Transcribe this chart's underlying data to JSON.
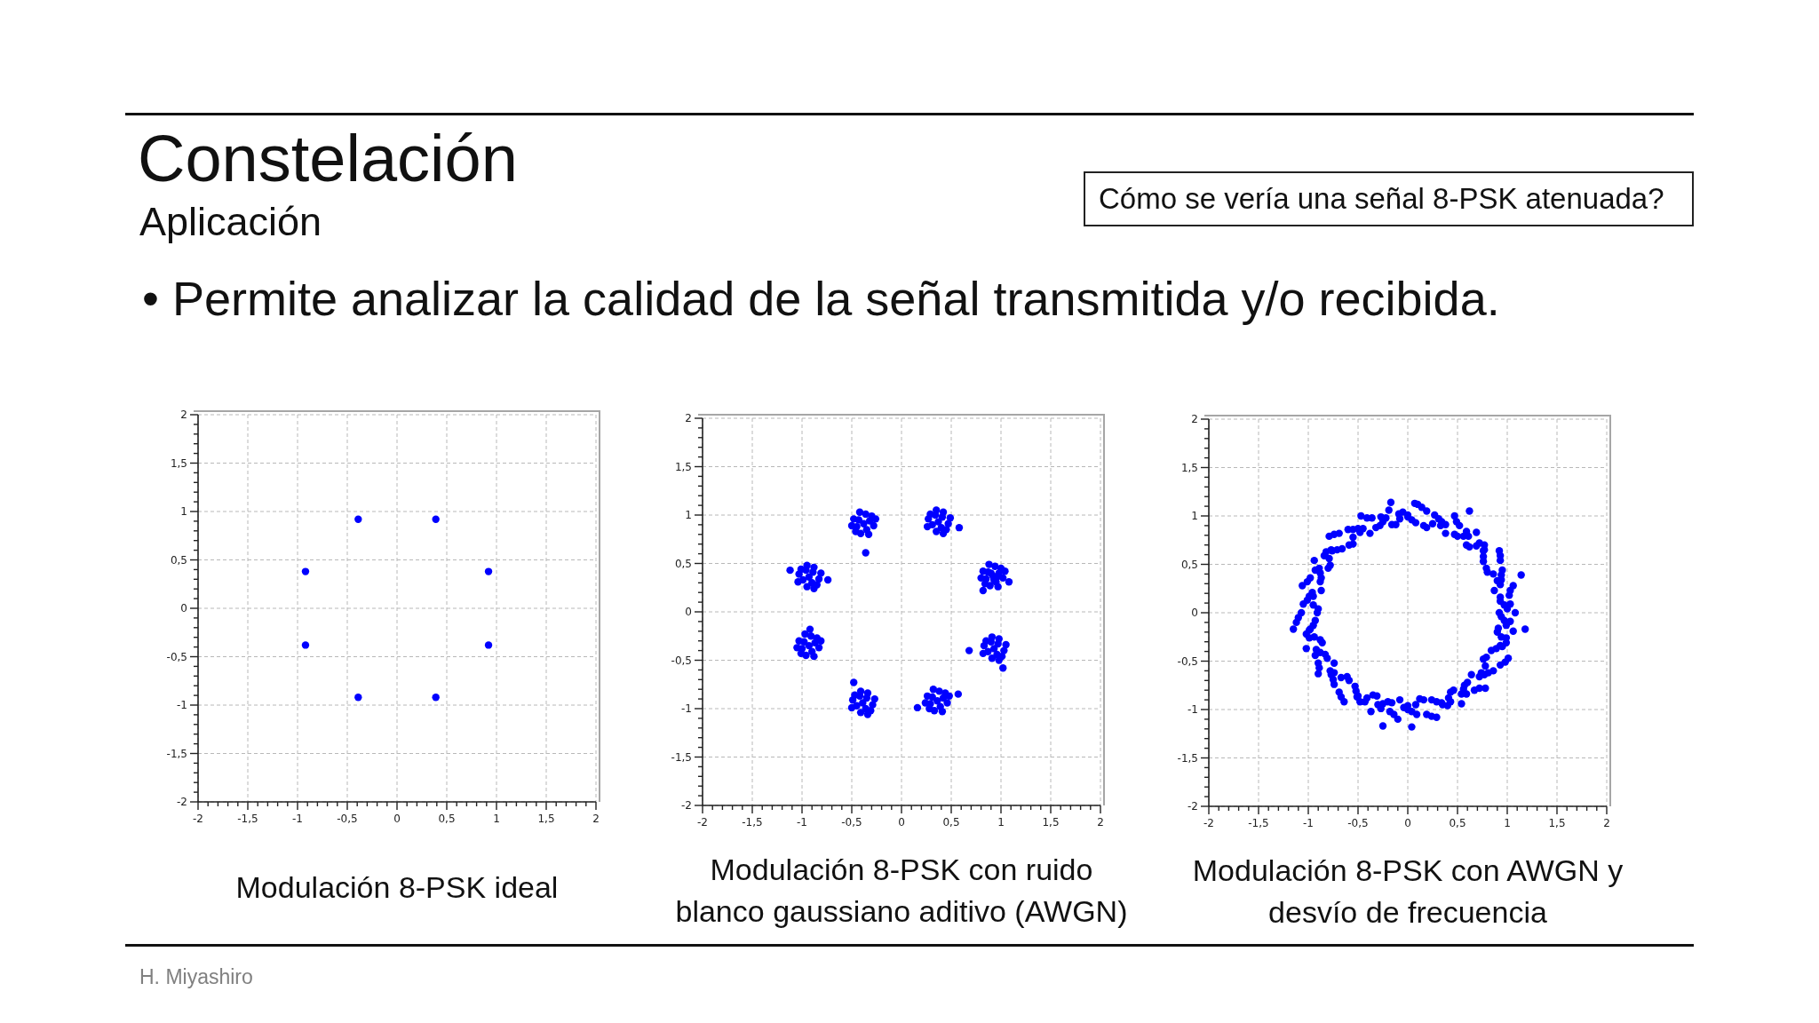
{
  "chart_data": [
    {
      "type": "other",
      "title": "Constelación",
      "subtitle": "Aplicación",
      "annotations": [
        "• Permite analizar la calidad de la señal transmitida y/o recibida.",
        "Cómo se vería una señal 8-PSK atenuada?",
        "H. Miyashiro"
      ]
    },
    {
      "type": "scatter",
      "title": "Modulación 8-PSK ideal",
      "color": "#0000ff",
      "marker": "circle",
      "grid": true,
      "xlim": [
        -2,
        2
      ],
      "ylim": [
        -2,
        2
      ],
      "xticks": [
        -2,
        {
          "value": -1.9,
          "label": null
        },
        {
          "value": -1.8,
          "label": null
        },
        {
          "value": -1.7,
          "label": null
        },
        {
          "value": -1.6,
          "label": null
        },
        {
          "value": -1.5,
          "label": "-1,5"
        },
        {
          "value": -1.4,
          "label": null
        },
        {
          "value": -1.3,
          "label": null
        },
        {
          "value": -1.2,
          "label": null
        },
        {
          "value": -1.1,
          "label": null
        },
        -1,
        {
          "value": -0.9,
          "label": null
        },
        {
          "value": -0.8,
          "label": null
        },
        {
          "value": -0.7,
          "label": null
        },
        {
          "value": -0.6,
          "label": null
        },
        {
          "value": -0.5,
          "label": "-0,5"
        },
        {
          "value": -0.4,
          "label": null
        },
        {
          "value": -0.3,
          "label": null
        },
        {
          "value": -0.2,
          "label": null
        },
        {
          "value": -0.1,
          "label": null
        },
        0,
        {
          "value": 0.1,
          "label": null
        },
        {
          "value": 0.2,
          "label": null
        },
        {
          "value": 0.3,
          "label": null
        },
        {
          "value": 0.4,
          "label": null
        },
        {
          "value": 0.5,
          "label": "0,5"
        },
        {
          "value": 0.6,
          "label": null
        },
        {
          "value": 0.7,
          "label": null
        },
        {
          "value": 0.8,
          "label": null
        },
        {
          "value": 0.9,
          "label": null
        },
        1,
        {
          "value": 1.1,
          "label": null
        },
        {
          "value": 1.2,
          "label": null
        },
        {
          "value": 1.3,
          "label": null
        },
        {
          "value": 1.4,
          "label": null
        },
        {
          "value": 1.5,
          "label": "1,5"
        },
        {
          "value": 1.6,
          "label": null
        },
        {
          "value": 1.7,
          "label": null
        },
        {
          "value": 1.8,
          "label": null
        },
        {
          "value": 1.9,
          "label": null
        },
        2
      ],
      "yticks": [
        -2,
        {
          "value": -1.9,
          "label": null
        },
        {
          "value": -1.8,
          "label": null
        },
        {
          "value": -1.7,
          "label": null
        },
        {
          "value": -1.6,
          "label": null
        },
        {
          "value": -1.5,
          "label": "-1,5"
        },
        {
          "value": -1.4,
          "label": null
        },
        {
          "value": -1.3,
          "label": null
        },
        {
          "value": -1.2,
          "label": null
        },
        {
          "value": -1.1,
          "label": null
        },
        -1,
        {
          "value": -0.9,
          "label": null
        },
        {
          "value": -0.8,
          "label": null
        },
        {
          "value": -0.7,
          "label": null
        },
        {
          "value": -0.6,
          "label": null
        },
        {
          "value": -0.5,
          "label": "-0,5"
        },
        {
          "value": -0.4,
          "label": null
        },
        {
          "value": -0.3,
          "label": null
        },
        {
          "value": -0.2,
          "label": null
        },
        {
          "value": -0.1,
          "label": null
        },
        0,
        {
          "value": 0.1,
          "label": null
        },
        {
          "value": 0.2,
          "label": null
        },
        {
          "value": 0.3,
          "label": null
        },
        {
          "value": 0.4,
          "label": null
        },
        {
          "value": 0.5,
          "label": "0,5"
        },
        {
          "value": 0.6,
          "label": null
        },
        {
          "value": 0.7,
          "label": null
        },
        {
          "value": 0.8,
          "label": null
        },
        {
          "value": 0.9,
          "label": null
        },
        1,
        {
          "value": 1.1,
          "label": null
        },
        {
          "value": 1.2,
          "label": null
        },
        {
          "value": 1.3,
          "label": null
        },
        {
          "value": 1.4,
          "label": null
        },
        {
          "value": 1.5,
          "label": "1,5"
        },
        {
          "value": 1.6,
          "label": null
        },
        {
          "value": 1.7,
          "label": null
        },
        {
          "value": 1.8,
          "label": null
        },
        {
          "value": 1.9,
          "label": null
        },
        2
      ],
      "x": [
        0.39,
        0.92,
        0.92,
        0.39,
        -0.39,
        -0.92,
        -0.92,
        -0.39
      ],
      "values": [
        0.92,
        0.38,
        -0.38,
        -0.92,
        -0.92,
        -0.38,
        0.38,
        0.92
      ]
    },
    {
      "type": "scatter",
      "title": "Modulación 8-PSK con ruido blanco gaussiano aditivo (AWGN)",
      "color": "#0000ff",
      "marker": "circle",
      "grid": true,
      "xlim": [
        -2,
        2
      ],
      "ylim": [
        -2,
        2
      ],
      "xticks": [
        -2,
        {
          "value": -1.9,
          "label": null
        },
        {
          "value": -1.8,
          "label": null
        },
        {
          "value": -1.7,
          "label": null
        },
        {
          "value": -1.6,
          "label": null
        },
        {
          "value": -1.5,
          "label": "-1,5"
        },
        {
          "value": -1.4,
          "label": null
        },
        {
          "value": -1.3,
          "label": null
        },
        {
          "value": -1.2,
          "label": null
        },
        {
          "value": -1.1,
          "label": null
        },
        -1,
        {
          "value": -0.9,
          "label": null
        },
        {
          "value": -0.8,
          "label": null
        },
        {
          "value": -0.7,
          "label": null
        },
        {
          "value": -0.6,
          "label": null
        },
        {
          "value": -0.5,
          "label": "-0,5"
        },
        {
          "value": -0.4,
          "label": null
        },
        {
          "value": -0.3,
          "label": null
        },
        {
          "value": -0.2,
          "label": null
        },
        {
          "value": -0.1,
          "label": null
        },
        0,
        {
          "value": 0.1,
          "label": null
        },
        {
          "value": 0.2,
          "label": null
        },
        {
          "value": 0.3,
          "label": null
        },
        {
          "value": 0.4,
          "label": null
        },
        {
          "value": 0.5,
          "label": "0,5"
        },
        {
          "value": 0.6,
          "label": null
        },
        {
          "value": 0.7,
          "label": null
        },
        {
          "value": 0.8,
          "label": null
        },
        {
          "value": 0.9,
          "label": null
        },
        1,
        {
          "value": 1.1,
          "label": null
        },
        {
          "value": 1.2,
          "label": null
        },
        {
          "value": 1.3,
          "label": null
        },
        {
          "value": 1.4,
          "label": null
        },
        {
          "value": 1.5,
          "label": "1,5"
        },
        {
          "value": 1.6,
          "label": null
        },
        {
          "value": 1.7,
          "label": null
        },
        {
          "value": 1.8,
          "label": null
        },
        {
          "value": 1.9,
          "label": null
        },
        2
      ],
      "yticks": [
        -2,
        {
          "value": -1.9,
          "label": null
        },
        {
          "value": -1.8,
          "label": null
        },
        {
          "value": -1.7,
          "label": null
        },
        {
          "value": -1.6,
          "label": null
        },
        {
          "value": -1.5,
          "label": "-1,5"
        },
        {
          "value": -1.4,
          "label": null
        },
        {
          "value": -1.3,
          "label": null
        },
        {
          "value": -1.2,
          "label": null
        },
        {
          "value": -1.1,
          "label": null
        },
        -1,
        {
          "value": -0.9,
          "label": null
        },
        {
          "value": -0.8,
          "label": null
        },
        {
          "value": -0.7,
          "label": null
        },
        {
          "value": -0.6,
          "label": null
        },
        {
          "value": -0.5,
          "label": "-0,5"
        },
        {
          "value": -0.4,
          "label": null
        },
        {
          "value": -0.3,
          "label": null
        },
        {
          "value": -0.2,
          "label": null
        },
        {
          "value": -0.1,
          "label": null
        },
        0,
        {
          "value": 0.1,
          "label": null
        },
        {
          "value": 0.2,
          "label": null
        },
        {
          "value": 0.3,
          "label": null
        },
        {
          "value": 0.4,
          "label": null
        },
        {
          "value": 0.5,
          "label": "0,5"
        },
        {
          "value": 0.6,
          "label": null
        },
        {
          "value": 0.7,
          "label": null
        },
        {
          "value": 0.8,
          "label": null
        },
        {
          "value": 0.9,
          "label": null
        },
        1,
        {
          "value": 1.1,
          "label": null
        },
        {
          "value": 1.2,
          "label": null
        },
        {
          "value": 1.3,
          "label": null
        },
        {
          "value": 1.4,
          "label": null
        },
        {
          "value": 1.5,
          "label": "1,5"
        },
        {
          "value": 1.6,
          "label": null
        },
        {
          "value": 1.7,
          "label": null
        },
        {
          "value": 1.8,
          "label": null
        },
        {
          "value": 1.9,
          "label": null
        },
        2
      ],
      "x": [
        -0.38,
        -0.32,
        -0.43,
        -0.35,
        -0.45,
        -0.28,
        -0.48,
        -0.36,
        -0.41,
        -0.3,
        -0.46,
        -0.26,
        -0.5,
        -0.33,
        -0.42,
        0.37,
        0.4,
        0.41,
        0.31,
        0.34,
        0.35,
        0.42,
        0.47,
        0.27,
        0.45,
        0.29,
        0.42,
        0.35,
        0.26,
        0.49,
        0.92,
        0.98,
        0.87,
        0.95,
        0.85,
        1.02,
        0.82,
        0.94,
        0.89,
        1,
        0.84,
        1.04,
        0.8,
        0.97,
        0.88,
        0.93,
        0.96,
        0.9,
        1.08,
        0.82,
        0.93,
        0.96,
        0.97,
        0.87,
        0.9,
        0.91,
        0.98,
        1.03,
        0.83,
        1.01,
        0.85,
        0.98,
        0.91,
        0.82,
        1.05,
        0.36,
        0.42,
        0.31,
        0.39,
        0.29,
        0.46,
        0.26,
        0.38,
        0.33,
        0.44,
        0.28,
        0.48,
        0.24,
        0.41,
        0.32,
        -0.39,
        -0.36,
        -0.35,
        -0.45,
        -0.42,
        -0.41,
        -0.34,
        -0.29,
        -0.49,
        -0.31,
        -0.47,
        -0.34,
        -0.41,
        -0.5,
        -0.27,
        -0.93,
        -0.87,
        -0.98,
        -0.9,
        -1,
        -0.83,
        -1.03,
        -0.91,
        -0.96,
        -0.85,
        -1.01,
        -0.81,
        -1.05,
        -0.88,
        -0.97,
        -0.93,
        -0.9,
        -0.89,
        -0.99,
        -0.96,
        -0.95,
        -0.88,
        -0.83,
        -1.03,
        -0.85,
        -1.01,
        -0.88,
        -0.95,
        -1.04,
        -0.81,
        -0.36,
        -1.12,
        0.58,
        0.68,
        1.02,
        -0.48,
        0.16,
        -0.92,
        0.57,
        -0.74
      ],
      "values": [
        0.91,
        0.94,
        0.95,
        0.85,
        0.88,
        0.89,
        0.96,
        1.01,
        0.81,
        0.99,
        0.83,
        0.96,
        0.89,
        0.8,
        1.03,
        0.93,
        0.87,
        0.98,
        0.9,
        1,
        0.83,
        1.03,
        0.91,
        0.96,
        0.85,
        1.01,
        0.81,
        1.05,
        0.88,
        0.97,
        0.37,
        0.4,
        0.41,
        0.31,
        0.34,
        0.35,
        0.42,
        0.47,
        0.27,
        0.45,
        0.29,
        0.42,
        0.35,
        0.26,
        0.49,
        0.33,
        0.36,
        0.4,
        0.31,
        0.22,
        -0.38,
        -0.44,
        -0.33,
        -0.41,
        -0.31,
        -0.48,
        -0.28,
        -0.4,
        -0.35,
        -0.46,
        -0.3,
        -0.5,
        -0.26,
        -0.43,
        -0.34,
        -0.92,
        -0.89,
        -0.88,
        -0.98,
        -0.95,
        -0.94,
        -0.87,
        -0.82,
        -1.02,
        -0.84,
        -1,
        -0.87,
        -0.94,
        -1.03,
        -0.8,
        -0.94,
        -1,
        -0.89,
        -0.97,
        -0.87,
        -1.04,
        -0.84,
        -0.96,
        -0.91,
        -1.02,
        -0.86,
        -1.06,
        -0.82,
        -0.99,
        -0.9,
        -0.35,
        -0.32,
        -0.31,
        -0.41,
        -0.38,
        -0.37,
        -0.3,
        -0.25,
        -0.45,
        -0.27,
        -0.43,
        -0.3,
        -0.37,
        -0.46,
        -0.23,
        0.36,
        0.3,
        0.41,
        0.33,
        0.43,
        0.26,
        0.46,
        0.34,
        0.39,
        0.28,
        0.44,
        0.24,
        0.48,
        0.31,
        0.4,
        0.61,
        0.43,
        0.87,
        -0.4,
        -0.58,
        -0.73,
        -0.99,
        -0.18,
        -0.85,
        0.33
      ]
    },
    {
      "type": "scatter",
      "title": "Modulación 8-PSK con AWGN y desvío de frecuencia",
      "color": "#0000ff",
      "marker": "circle",
      "grid": true,
      "xlim": [
        -2,
        2
      ],
      "ylim": [
        -2,
        2
      ],
      "xticks": [
        -2,
        {
          "value": -1.9,
          "label": null
        },
        {
          "value": -1.8,
          "label": null
        },
        {
          "value": -1.7,
          "label": null
        },
        {
          "value": -1.6,
          "label": null
        },
        {
          "value": -1.5,
          "label": "-1,5"
        },
        {
          "value": -1.4,
          "label": null
        },
        {
          "value": -1.3,
          "label": null
        },
        {
          "value": -1.2,
          "label": null
        },
        {
          "value": -1.1,
          "label": null
        },
        -1,
        {
          "value": -0.9,
          "label": null
        },
        {
          "value": -0.8,
          "label": null
        },
        {
          "value": -0.7,
          "label": null
        },
        {
          "value": -0.6,
          "label": null
        },
        {
          "value": -0.5,
          "label": "-0,5"
        },
        {
          "value": -0.4,
          "label": null
        },
        {
          "value": -0.3,
          "label": null
        },
        {
          "value": -0.2,
          "label": null
        },
        {
          "value": -0.1,
          "label": null
        },
        0,
        {
          "value": 0.1,
          "label": null
        },
        {
          "value": 0.2,
          "label": null
        },
        {
          "value": 0.3,
          "label": null
        },
        {
          "value": 0.4,
          "label": null
        },
        {
          "value": 0.5,
          "label": "0,5"
        },
        {
          "value": 0.6,
          "label": null
        },
        {
          "value": 0.7,
          "label": null
        },
        {
          "value": 0.8,
          "label": null
        },
        {
          "value": 0.9,
          "label": null
        },
        1,
        {
          "value": 1.1,
          "label": null
        },
        {
          "value": 1.2,
          "label": null
        },
        {
          "value": 1.3,
          "label": null
        },
        {
          "value": 1.4,
          "label": null
        },
        {
          "value": 1.5,
          "label": "1,5"
        },
        {
          "value": 1.6,
          "label": null
        },
        {
          "value": 1.7,
          "label": null
        },
        {
          "value": 1.8,
          "label": null
        },
        {
          "value": 1.9,
          "label": null
        },
        2
      ],
      "yticks": [
        -2,
        {
          "value": -1.9,
          "label": null
        },
        {
          "value": -1.8,
          "label": null
        },
        {
          "value": -1.7,
          "label": null
        },
        {
          "value": -1.6,
          "label": null
        },
        {
          "value": -1.5,
          "label": "-1,5"
        },
        {
          "value": -1.4,
          "label": null
        },
        {
          "value": -1.3,
          "label": null
        },
        {
          "value": -1.2,
          "label": null
        },
        {
          "value": -1.1,
          "label": null
        },
        -1,
        {
          "value": -0.9,
          "label": null
        },
        {
          "value": -0.8,
          "label": null
        },
        {
          "value": -0.7,
          "label": null
        },
        {
          "value": -0.6,
          "label": null
        },
        {
          "value": -0.5,
          "label": "-0,5"
        },
        {
          "value": -0.4,
          "label": null
        },
        {
          "value": -0.3,
          "label": null
        },
        {
          "value": -0.2,
          "label": null
        },
        {
          "value": -0.1,
          "label": null
        },
        0,
        {
          "value": 0.1,
          "label": null
        },
        {
          "value": 0.2,
          "label": null
        },
        {
          "value": 0.3,
          "label": null
        },
        {
          "value": 0.4,
          "label": null
        },
        {
          "value": 0.5,
          "label": "0,5"
        },
        {
          "value": 0.6,
          "label": null
        },
        {
          "value": 0.7,
          "label": null
        },
        {
          "value": 0.8,
          "label": null
        },
        {
          "value": 0.9,
          "label": null
        },
        1,
        {
          "value": 1.1,
          "label": null
        },
        {
          "value": 1.2,
          "label": null
        },
        {
          "value": 1.3,
          "label": null
        },
        {
          "value": 1.4,
          "label": null
        },
        {
          "value": 1.5,
          "label": "1,5"
        },
        {
          "value": 1.6,
          "label": null
        },
        {
          "value": 1.7,
          "label": null
        },
        {
          "value": 1.8,
          "label": null
        },
        {
          "value": 1.9,
          "label": null
        },
        2
      ],
      "x": [
        0.92,
        1.08,
        0.97,
        1.03,
        1.02,
        0.93,
        0.87,
        1.06,
        0.94,
        0.9,
        0.86,
        0.95,
        0.93,
        0.79,
        0.76,
        0.92,
        0.76,
        0.77,
        0.72,
        0.69,
        0.59,
        0.69,
        0.56,
        0.59,
        0.52,
        0.47,
        0.38,
        0.47,
        0.34,
        0.33,
        0.25,
        0.27,
        0.19,
        0.16,
        0.08,
        0.1,
        0,
        0,
        -0.09,
        -0.08,
        -0.16,
        -0.19,
        -0.25,
        -0.27,
        -0.36,
        -0.32,
        -0.38,
        -0.47,
        -0.5,
        -0.48,
        -0.55,
        -0.6,
        -0.69,
        -0.59,
        -0.66,
        -0.79,
        -0.76,
        -0.77,
        -0.84,
        -0.79,
        -0.8,
        -0.94,
        -0.88,
        -0.93,
        -0.98,
        -0.88,
        -0.87,
        -1.06,
        -0.99,
        -0.95,
        -0.95,
        -1.05,
        -1.07,
        -0.91,
        -0.93,
        -1.12,
        -0.98,
        -0.99,
        -0.99,
        -0.94,
        -0.86,
        -1.02,
        -0.88,
        -0.93,
        -0.9,
        -0.81,
        -0.74,
        -0.9,
        -0.77,
        -0.74,
        -0.67,
        -0.74,
        -0.69,
        -0.59,
        -0.53,
        -0.64,
        -0.5,
        -0.51,
        -0.43,
        -0.41,
        -0.31,
        -0.37,
        -0.25,
        -0.27,
        -0.18,
        -0.16,
        -0.08,
        -0.1,
        0,
        0,
        0.08,
        0.09,
        0.19,
        0.16,
        0.24,
        0.29,
        0.34,
        0.35,
        0.43,
        0.41,
        0.46,
        0.54,
        0.56,
        0.59,
        0.67,
        0.6,
        0.64,
        0.78,
        0.77,
        0.74,
        0.78,
        0.86,
        0.93,
        0.79,
        0.84,
        1.01,
        0.93,
        0.95,
        0.99,
        0.94,
        0.91,
        1.06,
        0.97,
        1.03,
        0.62,
        1.18,
        -0.25,
        0.04,
        -1.15,
        0.07,
        -0.17,
        1.14,
        1,
        0.93,
        1.03,
        0.93,
        0.94,
        0.8,
        0.93,
        0.76,
        0.77,
        0.62,
        0.61,
        0.5,
        0.49,
        0.38,
        0.31,
        0.19,
        0.14,
        0.04,
        -0.05,
        -0.12,
        -0.22,
        -0.28,
        -0.41,
        -0.45,
        -0.55,
        -0.55,
        -0.74,
        -0.71,
        -0.82,
        -0.78,
        -0.89,
        -0.87,
        -1.01,
        -0.96,
        -1.01,
        -0.9,
        -1.1,
        -0.95,
        -1.02,
        -0.88,
        -0.92,
        -0.83,
        -0.89,
        -0.78,
        -0.75,
        -0.61,
        -0.67,
        -0.52,
        -0.48,
        -0.35,
        -0.3,
        -0.2,
        -0.14,
        -0.04,
        0.04,
        0.12,
        0.24,
        0.29,
        0.4,
        0.43,
        0.54,
        0.57,
        0.72,
        0.72,
        0.81,
        0.76,
        0.98,
        0.89,
        0.99,
        0.9,
        0.99,
        0.94
      ],
      "values": [
        0,
        0,
        0.08,
        0.09,
        0.18,
        0.16,
        0.23,
        0.28,
        0.34,
        0.33,
        0.4,
        0.44,
        0.54,
        0.46,
        0.53,
        0.64,
        0.64,
        0.65,
        0.72,
        0.69,
        0.7,
        0.83,
        0.79,
        0.84,
        0.9,
        0.81,
        0.82,
        1,
        0.94,
        0.9,
        0.92,
        1.01,
        1.05,
        0.9,
        0.93,
        1.12,
        0.99,
        1.01,
        1.02,
        0.97,
        0.91,
        1.06,
        0.94,
        0.99,
        0.98,
        0.88,
        0.82,
        1,
        0.87,
        0.83,
        0.78,
        0.86,
        0.82,
        0.7,
        0.66,
        0.79,
        0.64,
        0.65,
        0.59,
        0.56,
        0.46,
        0.54,
        0.41,
        0.44,
        0.36,
        0.32,
        0.23,
        0.28,
        0.17,
        0.17,
        0.08,
        0.09,
        0,
        0,
        -0.08,
        -0.1,
        -0.17,
        -0.18,
        -0.26,
        -0.25,
        -0.31,
        -0.37,
        -0.41,
        -0.44,
        -0.52,
        -0.47,
        -0.52,
        -0.63,
        -0.64,
        -0.62,
        -0.67,
        -0.74,
        -0.82,
        -0.7,
        -0.76,
        -0.92,
        -0.86,
        -0.87,
        -0.92,
        -0.88,
        -0.86,
        -1.02,
        -0.94,
        -0.99,
        -1.02,
        -0.93,
        -0.9,
        -1.1,
        -1,
        -0.96,
        -0.95,
        -1.05,
        -1.05,
        -0.9,
        -0.9,
        -1.08,
        -0.93,
        -0.95,
        -0.92,
        -0.88,
        -0.8,
        -0.94,
        -0.79,
        -0.84,
        -0.8,
        -0.72,
        -0.64,
        -0.78,
        -0.64,
        -0.62,
        -0.55,
        -0.6,
        -0.54,
        -0.46,
        -0.39,
        -0.47,
        -0.34,
        -0.35,
        -0.26,
        -0.25,
        -0.16,
        -0.19,
        -0.08,
        -0.09,
        1.05,
        -0.17,
        -1.17,
        -1.18,
        -0.17,
        1.13,
        1.14,
        0.39,
        0.04,
        0.12,
        0.23,
        0.29,
        0.39,
        0.42,
        0.59,
        0.58,
        0.7,
        0.68,
        0.79,
        0.79,
        0.94,
        0.91,
        0.97,
        0.88,
        1.09,
        0.96,
        1.04,
        0.91,
        0.98,
        0.9,
        0.98,
        0.87,
        0.86,
        0.71,
        0.81,
        0.65,
        0.63,
        0.49,
        0.46,
        0.36,
        0.32,
        0.21,
        0.13,
        0.04,
        -0.05,
        -0.13,
        -0.22,
        -0.28,
        -0.38,
        -0.43,
        -0.57,
        -0.6,
        -0.69,
        -0.66,
        -0.87,
        -0.81,
        -0.92,
        -0.85,
        -0.95,
        -0.92,
        -1.05,
        -0.98,
        -1.02,
        -0.89,
        -1.07,
        -0.92,
        -0.96,
        -0.82,
        -0.84,
        -0.75,
        -0.78,
        -0.66,
        -0.62,
        -0.48,
        -0.51,
        -0.37,
        -0.31,
        -0.2,
        -0.13,
        -0.04
      ]
    }
  ]
}
